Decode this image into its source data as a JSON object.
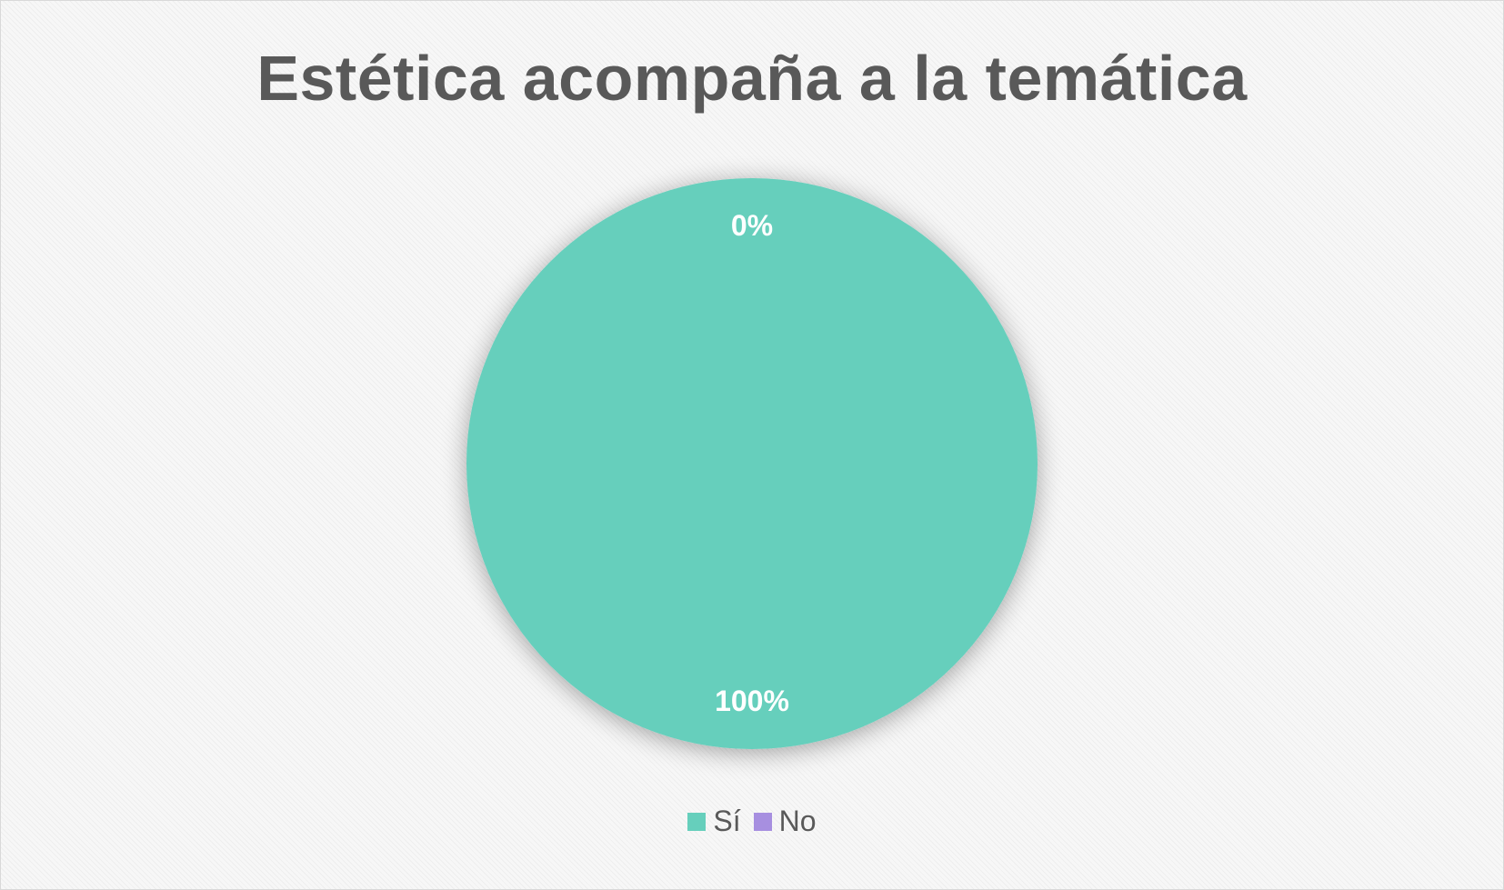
{
  "chart_data": {
    "type": "pie",
    "title": "Estética acompaña a la temática",
    "categories": [
      "Sí",
      "No"
    ],
    "values": [
      100,
      0
    ],
    "data_labels": [
      "100%",
      "0%"
    ],
    "colors": [
      "#66CFBC",
      "#A78FE0"
    ],
    "legend_placement": "bottom"
  }
}
